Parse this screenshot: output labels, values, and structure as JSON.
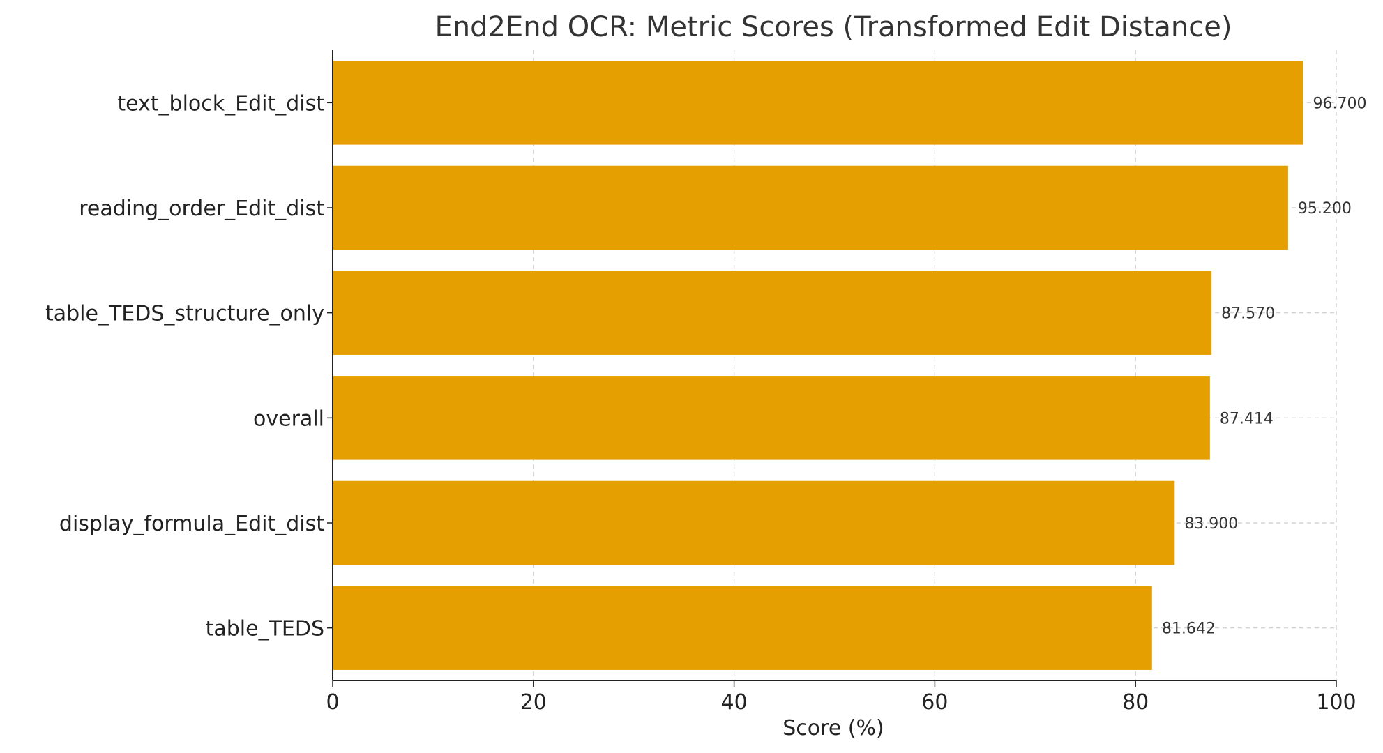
{
  "chart_data": {
    "type": "bar",
    "orientation": "horizontal",
    "title": "End2End OCR: Metric Scores (Transformed Edit Distance)",
    "xlabel": "Score (%)",
    "ylabel": "",
    "xlim": [
      0,
      100
    ],
    "x_ticks": [
      "0",
      "20",
      "40",
      "60",
      "80",
      "100"
    ],
    "categories": [
      "text_block_Edit_dist",
      "reading_order_Edit_dist",
      "table_TEDS_structure_only",
      "overall",
      "display_formula_Edit_dist",
      "table_TEDS"
    ],
    "values": [
      96.7,
      95.2,
      87.57,
      87.414,
      83.9,
      81.642
    ],
    "value_labels": [
      "96.700",
      "95.200",
      "87.570",
      "87.414",
      "83.900",
      "81.642"
    ],
    "bar_color": "#E69F00",
    "grid": true
  }
}
